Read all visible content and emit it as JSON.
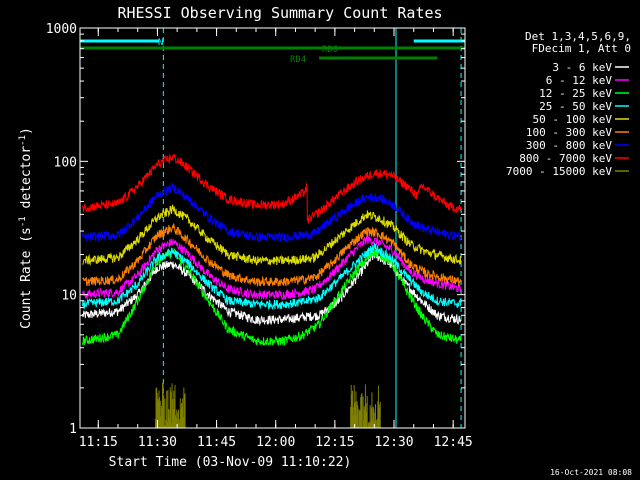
{
  "chart_data": {
    "type": "line",
    "title": "RHESSI Observing Summary Count Rates",
    "xlabel": "Start Time (03-Nov-09 11:10:22)",
    "ylabel_parts": [
      "Count Rate (s",
      "-1",
      " detector",
      "-1",
      ")"
    ],
    "yscale": "log",
    "ylim": [
      1,
      1000
    ],
    "yticks": [
      {
        "value": 1,
        "label": "1"
      },
      {
        "value": 10,
        "label": "10"
      },
      {
        "value": 100,
        "label": "100"
      },
      {
        "value": 1000,
        "label": "1000"
      }
    ],
    "xlim": [
      "11:10:22",
      "12:48:00"
    ],
    "xticks": [
      "11:15",
      "11:30",
      "11:45",
      "12:00",
      "12:15",
      "12:30",
      "12:45"
    ],
    "legend_header": [
      "Det 1,3,4,5,6,9,",
      "FDecim 1, Att 0"
    ],
    "legend_position": "right",
    "timestamp": "16-Oct-2021 08:08",
    "flags": [
      {
        "name": "N",
        "color": "#00ffff",
        "segments": [
          [
            "11:10:22",
            "11:30:30"
          ],
          [
            "12:35:00",
            "12:48:00"
          ]
        ]
      },
      {
        "name": "RD0",
        "color": "#008000",
        "segments": [
          [
            "11:10:22",
            "12:38:00"
          ]
        ]
      },
      {
        "name": "RD4",
        "color": "#008000",
        "segments": [
          [
            "12:11:00",
            "12:41:00"
          ],
          [
            "12:38:00",
            "12:48:00"
          ]
        ]
      }
    ],
    "night_boundaries": [
      "11:31:30",
      "12:47:00"
    ],
    "day_boundaries": [
      "11:10:22",
      "12:30:30"
    ],
    "series": [
      {
        "name": "3 - 6 keV",
        "color": "#ffffff",
        "x": [
          "11:11",
          "11:20",
          "11:25",
          "11:30",
          "11:34",
          "11:38",
          "11:43",
          "11:48",
          "11:55",
          "12:02",
          "12:07",
          "12:11",
          "12:16",
          "12:21",
          "12:25",
          "12:29",
          "12:33",
          "12:37",
          "12:41",
          "12:47"
        ],
        "y": [
          7,
          7.5,
          10,
          16,
          17,
          14,
          10,
          7.5,
          6.5,
          6.5,
          6.8,
          7,
          9,
          14,
          20,
          17,
          12,
          9,
          7,
          6.5
        ]
      },
      {
        "name": "6 - 12 keV",
        "color": "#ff00ff",
        "x": [
          "11:11",
          "11:20",
          "11:25",
          "11:30",
          "11:34",
          "11:38",
          "11:43",
          "11:48",
          "11:55",
          "12:02",
          "12:07",
          "12:10",
          "12:14",
          "12:19",
          "12:23",
          "12:26",
          "12:30",
          "12:34",
          "12:38",
          "12:42",
          "12:47"
        ],
        "y": [
          10,
          10.5,
          14,
          22,
          25,
          20,
          14,
          11,
          10,
          10,
          10.5,
          11,
          14,
          20,
          26,
          25,
          21,
          15,
          13,
          12,
          11
        ]
      },
      {
        "name": "12 - 25 keV",
        "color": "#00ff00",
        "x": [
          "11:11",
          "11:20",
          "11:25",
          "11:30",
          "11:34",
          "11:38",
          "11:43",
          "11:48",
          "11:55",
          "12:02",
          "12:07",
          "12:11",
          "12:16",
          "12:21",
          "12:25",
          "12:29",
          "12:33",
          "12:37",
          "12:41",
          "12:47"
        ],
        "y": [
          4.5,
          5,
          9,
          18,
          21,
          15,
          9,
          5.5,
          4.5,
          4.5,
          5,
          6,
          10,
          16,
          21,
          18,
          11,
          7,
          5,
          4.5
        ]
      },
      {
        "name": "25 - 50 keV",
        "color": "#00ffff",
        "x": [
          "11:11",
          "11:20",
          "11:25",
          "11:30",
          "11:34",
          "11:38",
          "11:43",
          "11:48",
          "11:55",
          "12:02",
          "12:07",
          "12:11",
          "12:16",
          "12:21",
          "12:25",
          "12:29",
          "12:33",
          "12:37",
          "12:41",
          "12:47"
        ],
        "y": [
          8.5,
          9,
          12,
          19,
          21,
          17,
          12,
          9,
          8.5,
          8.5,
          8.8,
          9.5,
          13,
          18,
          23,
          19,
          14,
          10.5,
          9,
          8.5
        ]
      },
      {
        "name": "50 - 100 keV",
        "color": "#dddd00",
        "x": [
          "11:11",
          "11:20",
          "11:25",
          "11:30",
          "11:34",
          "11:38",
          "11:43",
          "11:48",
          "11:55",
          "12:02",
          "12:07",
          "12:10",
          "12:14",
          "12:19",
          "12:23",
          "12:26",
          "12:30",
          "12:34",
          "12:38",
          "12:42",
          "12:47"
        ],
        "y": [
          18,
          19,
          26,
          38,
          44,
          36,
          26,
          20,
          18,
          18,
          18.5,
          19,
          24,
          32,
          40,
          38,
          32,
          24,
          21,
          19.5,
          18
        ]
      },
      {
        "name": "100 - 300 keV",
        "color": "#ff8000",
        "x": [
          "11:11",
          "11:20",
          "11:25",
          "11:30",
          "11:34",
          "11:38",
          "11:43",
          "11:48",
          "11:55",
          "12:02",
          "12:07",
          "12:10",
          "12:14",
          "12:19",
          "12:23",
          "12:26",
          "12:30",
          "12:34",
          "12:38",
          "12:42",
          "12:47"
        ],
        "y": [
          12.5,
          13,
          18,
          28,
          32,
          25,
          18,
          14,
          12.5,
          12.5,
          13,
          13.5,
          17,
          24,
          30,
          29,
          24,
          17,
          14.5,
          13.5,
          12.5
        ]
      },
      {
        "name": "300 - 800 keV",
        "color": "#0000ff",
        "x": [
          "11:11",
          "11:20",
          "11:25",
          "11:30",
          "11:34",
          "11:38",
          "11:43",
          "11:48",
          "11:55",
          "12:02",
          "12:07",
          "12:10",
          "12:14",
          "12:19",
          "12:23",
          "12:26",
          "12:30",
          "12:34",
          "12:38",
          "12:42",
          "12:47"
        ],
        "y": [
          27,
          28,
          38,
          56,
          64,
          52,
          38,
          30,
          27,
          27,
          28,
          29,
          36,
          46,
          54,
          54,
          47,
          36,
          31,
          29,
          27
        ]
      },
      {
        "name": "800 - 7000 keV",
        "color": "#ff0000",
        "x": [
          "11:11",
          "11:20",
          "11:25",
          "11:30",
          "11:34",
          "11:38",
          "11:43",
          "11:48",
          "11:55",
          "12:02",
          "12:07",
          "12:08",
          "12:08",
          "12:12",
          "12:16",
          "12:21",
          "12:25",
          "12:29",
          "12:33",
          "12:36",
          "12:37",
          "12:40",
          "12:44",
          "12:47"
        ],
        "y": [
          45,
          48,
          65,
          95,
          108,
          88,
          65,
          52,
          47,
          48,
          58,
          64,
          36,
          44,
          56,
          72,
          82,
          80,
          66,
          55,
          66,
          56,
          46,
          44
        ]
      },
      {
        "name": "7000 - 15000 keV",
        "color": "#808000",
        "bursts": [
          [
            "11:29:30",
            "11:37:00"
          ],
          [
            "12:19:00",
            "12:26:30"
          ]
        ],
        "burst_range": [
          1,
          2.2
        ]
      }
    ]
  }
}
